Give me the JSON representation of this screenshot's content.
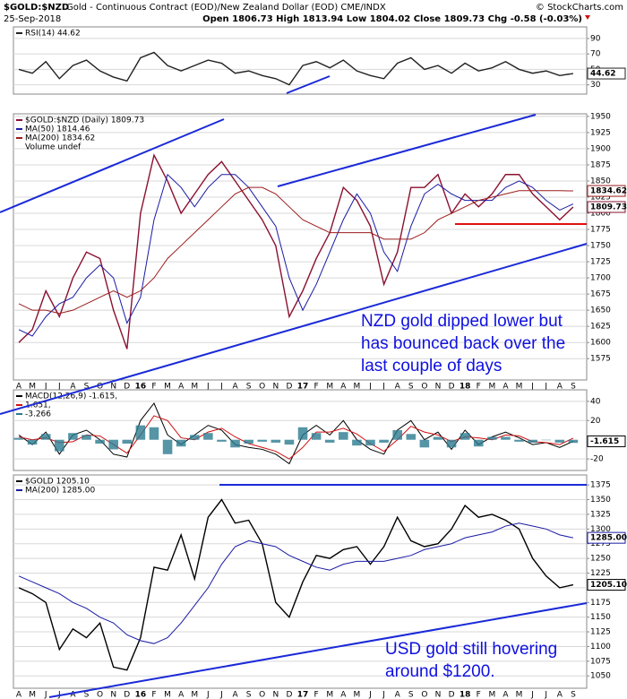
{
  "header": {
    "symbol": "$GOLD:$NZD",
    "description": "Gold - Continuous Contract (EOD)/New Zealand Dollar (EOD) CME/INDX",
    "credit": "© StockCharts.com",
    "date": "25-Sep-2018",
    "ohlc": "Open 1806.73 High 1813.94 Low 1804.02 Close 1809.73 Chg -0.58 (-0.03%)"
  },
  "chart_data": [
    {
      "type": "line",
      "ylim": [
        18,
        105
      ],
      "yticks": [
        30,
        50,
        70,
        90
      ],
      "grid": true,
      "series": [
        {
          "name": "RSI(14) 44.62",
          "color": "#222222",
          "tag": true,
          "values": [
            50,
            45,
            60,
            38,
            55,
            62,
            48,
            40,
            35,
            65,
            72,
            55,
            48,
            55,
            62,
            58,
            45,
            48,
            42,
            38,
            30,
            55,
            60,
            52,
            62,
            48,
            42,
            38,
            58,
            65,
            50,
            55,
            45,
            58,
            48,
            52,
            60,
            50,
            45,
            48,
            42,
            44.62
          ]
        }
      ]
    },
    {
      "type": "line",
      "ylim": [
        1542,
        1954
      ],
      "yticks": [
        1575,
        1600,
        1625,
        1650,
        1675,
        1700,
        1725,
        1750,
        1775,
        1800,
        1825,
        1850,
        1875,
        1900,
        1925,
        1950
      ],
      "grid": true,
      "categories": [
        "A",
        "M",
        "J",
        "J",
        "A",
        "S",
        "O",
        "N",
        "D",
        "16",
        "F",
        "M",
        "A",
        "M",
        "J",
        "J",
        "A",
        "S",
        "O",
        "N",
        "D",
        "17",
        "F",
        "M",
        "A",
        "M",
        "J",
        "J",
        "A",
        "S",
        "O",
        "N",
        "D",
        "18",
        "F",
        "M",
        "A",
        "M",
        "J",
        "J",
        "A",
        "S"
      ],
      "legend_extra": "Volume undef",
      "annotation": [
        "NZD gold dipped lower but",
        "has bounced back over the",
        "last couple of days"
      ],
      "series": [
        {
          "name": "$GOLD:$NZD (Daily) 1809.73",
          "color": "#8a1030",
          "tag": true,
          "values": [
            1600,
            1620,
            1680,
            1640,
            1700,
            1740,
            1730,
            1650,
            1590,
            1800,
            1890,
            1850,
            1800,
            1830,
            1860,
            1880,
            1850,
            1820,
            1790,
            1750,
            1640,
            1680,
            1730,
            1770,
            1840,
            1820,
            1780,
            1690,
            1740,
            1840,
            1840,
            1860,
            1800,
            1830,
            1810,
            1830,
            1860,
            1860,
            1830,
            1810,
            1790,
            1809.73
          ]
        },
        {
          "name": "MA(50) 1814.46",
          "color": "#1a1aa6",
          "values": [
            1620,
            1610,
            1640,
            1660,
            1670,
            1700,
            1720,
            1700,
            1630,
            1670,
            1790,
            1860,
            1840,
            1810,
            1840,
            1860,
            1860,
            1840,
            1810,
            1780,
            1700,
            1650,
            1690,
            1740,
            1790,
            1830,
            1800,
            1740,
            1710,
            1780,
            1830,
            1845,
            1830,
            1820,
            1820,
            1820,
            1840,
            1850,
            1840,
            1820,
            1805,
            1814.46
          ]
        },
        {
          "name": "MA(200) 1834.62",
          "color": "#9b1c1c",
          "tag": true,
          "values": [
            1660,
            1650,
            1650,
            1645,
            1650,
            1660,
            1670,
            1680,
            1670,
            1680,
            1700,
            1730,
            1750,
            1770,
            1790,
            1810,
            1830,
            1840,
            1840,
            1830,
            1810,
            1790,
            1780,
            1770,
            1770,
            1770,
            1770,
            1760,
            1760,
            1760,
            1770,
            1790,
            1800,
            1810,
            1820,
            1825,
            1830,
            1835,
            1835,
            1835,
            1835,
            1834.62
          ]
        }
      ]
    },
    {
      "type": "line",
      "ylim": [
        -32,
        52
      ],
      "yticks": [
        -20,
        20,
        40
      ],
      "grid": true,
      "series": [
        {
          "name": "MACD(12,26,9) -1.615,",
          "color": "#000000",
          "tag": true,
          "values": [
            5,
            -5,
            8,
            -15,
            5,
            10,
            0,
            -15,
            -18,
            20,
            38,
            5,
            -5,
            5,
            15,
            10,
            -5,
            -8,
            -10,
            -15,
            -25,
            5,
            15,
            5,
            20,
            0,
            -10,
            -15,
            10,
            20,
            0,
            8,
            -10,
            10,
            -5,
            3,
            8,
            2,
            -5,
            -3,
            -8,
            -1.615
          ]
        },
        {
          "name": "1.651,",
          "color": "#d01010",
          "values": [
            3,
            0,
            2,
            -3,
            -2,
            5,
            4,
            -5,
            -14,
            5,
            25,
            20,
            2,
            0,
            8,
            12,
            3,
            -4,
            -8,
            -12,
            -20,
            -8,
            8,
            8,
            12,
            6,
            -4,
            -12,
            0,
            14,
            8,
            5,
            -2,
            3,
            2,
            0,
            5,
            4,
            -2,
            -3,
            -5,
            1.651
          ]
        },
        {
          "name": "-3.266",
          "color": "#2a7a90",
          "type": "bar",
          "values": [
            2,
            -5,
            6,
            -12,
            7,
            5,
            -4,
            -10,
            -4,
            15,
            13,
            -15,
            -7,
            5,
            7,
            -2,
            -8,
            -4,
            -2,
            -3,
            -5,
            13,
            7,
            -3,
            8,
            -6,
            -6,
            -3,
            10,
            6,
            -8,
            3,
            -8,
            7,
            -7,
            3,
            3,
            -2,
            -3,
            0,
            -3,
            -3.266
          ]
        }
      ]
    },
    {
      "type": "line",
      "ylim": [
        1029,
        1392
      ],
      "yticks": [
        1050,
        1075,
        1100,
        1125,
        1150,
        1175,
        1200,
        1225,
        1250,
        1275,
        1300,
        1325,
        1350,
        1375
      ],
      "grid": true,
      "categories": [
        "A",
        "M",
        "J",
        "J",
        "A",
        "S",
        "O",
        "N",
        "D",
        "16",
        "F",
        "M",
        "A",
        "M",
        "J",
        "J",
        "A",
        "S",
        "O",
        "N",
        "D",
        "17",
        "F",
        "M",
        "A",
        "M",
        "J",
        "J",
        "A",
        "S",
        "O",
        "N",
        "D",
        "18",
        "F",
        "M",
        "A",
        "M",
        "J",
        "J",
        "A",
        "S"
      ],
      "annotation": [
        "USD gold still hovering",
        "around $1200."
      ],
      "series": [
        {
          "name": "$GOLD 1205.10",
          "color": "#000000",
          "tag": true,
          "last_value_label": "1205.10",
          "values": [
            1200,
            1190,
            1175,
            1095,
            1130,
            1115,
            1140,
            1065,
            1060,
            1115,
            1235,
            1230,
            1290,
            1215,
            1320,
            1350,
            1310,
            1315,
            1275,
            1175,
            1150,
            1210,
            1255,
            1250,
            1265,
            1270,
            1240,
            1270,
            1320,
            1280,
            1270,
            1275,
            1300,
            1340,
            1320,
            1325,
            1315,
            1300,
            1250,
            1220,
            1200,
            1205.1
          ]
        },
        {
          "name": "MA(200) 1285.00",
          "color": "#1a1aa6",
          "tag": true,
          "last_value_label": "1285.00",
          "values": [
            1220,
            1210,
            1200,
            1190,
            1175,
            1165,
            1150,
            1140,
            1120,
            1110,
            1105,
            1115,
            1140,
            1170,
            1200,
            1240,
            1270,
            1280,
            1275,
            1270,
            1255,
            1245,
            1235,
            1230,
            1240,
            1245,
            1245,
            1245,
            1250,
            1255,
            1265,
            1270,
            1275,
            1285,
            1290,
            1295,
            1305,
            1310,
            1305,
            1300,
            1290,
            1285
          ]
        }
      ]
    }
  ]
}
